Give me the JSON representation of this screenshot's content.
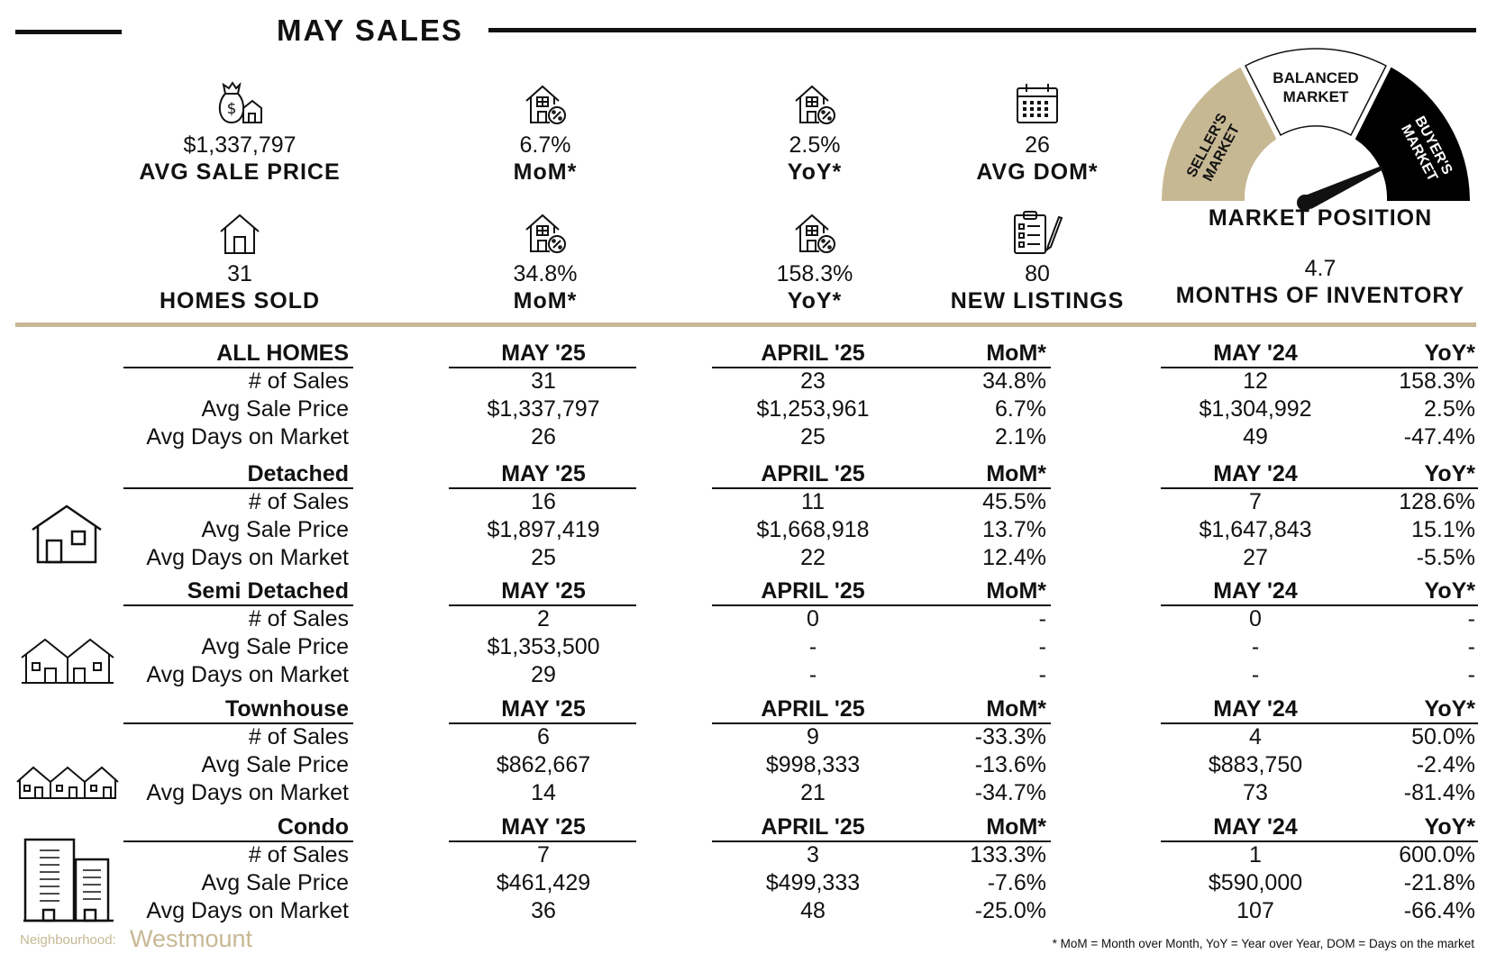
{
  "header": {
    "title": "MAY SALES"
  },
  "stats_top": [
    {
      "icon": "money-bag-house-icon",
      "value": "$1,337,797",
      "label": "AVG SALE PRICE"
    },
    {
      "icon": "house-percent-icon",
      "value": "6.7%",
      "label": "MoM*"
    },
    {
      "icon": "house-percent-icon",
      "value": "2.5%",
      "label": "YoY*"
    },
    {
      "icon": "calendar-icon",
      "value": "26",
      "label": "AVG DOM*"
    }
  ],
  "stats_bottom": [
    {
      "icon": "house-icon",
      "value": "31",
      "label": "HOMES SOLD"
    },
    {
      "icon": "house-percent-icon",
      "value": "34.8%",
      "label": "MoM*"
    },
    {
      "icon": "house-percent-icon",
      "value": "158.3%",
      "label": "YoY*"
    },
    {
      "icon": "clipboard-pencil-icon",
      "value": "80",
      "label": "NEW LISTINGS"
    }
  ],
  "gauge": {
    "seller": "SELLER'S MARKET",
    "balanced_1": "BALANCED",
    "balanced_2": "MARKET",
    "buyer": "BUYER'S MARKET",
    "title": "MARKET POSITION",
    "value": "4.7",
    "label": "MONTHS OF INVENTORY",
    "colors": {
      "seller": "#c7b894",
      "balanced": "#ffffff",
      "buyer": "#000000"
    }
  },
  "columns": {
    "current": "MAY '25",
    "previous": "APRIL '25",
    "mom": "MoM*",
    "last_year": "MAY '24",
    "yoy": "YoY*"
  },
  "sections": [
    {
      "name": "ALL HOMES",
      "rows": [
        {
          "label": "# of Sales",
          "cur": "31",
          "prev": "23",
          "mom": "34.8%",
          "ly": "12",
          "yoy": "158.3%"
        },
        {
          "label": "Avg Sale Price",
          "cur": "$1,337,797",
          "prev": "$1,253,961",
          "mom": "6.7%",
          "ly": "$1,304,992",
          "yoy": "2.5%"
        },
        {
          "label": "Avg Days on Market",
          "cur": "26",
          "prev": "25",
          "mom": "2.1%",
          "ly": "49",
          "yoy": "-47.4%"
        }
      ]
    },
    {
      "name": "Detached",
      "icon": "detached-house-icon",
      "rows": [
        {
          "label": "# of Sales",
          "cur": "16",
          "prev": "11",
          "mom": "45.5%",
          "ly": "7",
          "yoy": "128.6%"
        },
        {
          "label": "Avg Sale Price",
          "cur": "$1,897,419",
          "prev": "$1,668,918",
          "mom": "13.7%",
          "ly": "$1,647,843",
          "yoy": "15.1%"
        },
        {
          "label": "Avg Days on Market",
          "cur": "25",
          "prev": "22",
          "mom": "12.4%",
          "ly": "27",
          "yoy": "-5.5%"
        }
      ]
    },
    {
      "name": "Semi Detached",
      "icon": "semi-detached-icon",
      "rows": [
        {
          "label": "# of Sales",
          "cur": "2",
          "prev": "0",
          "mom": "-",
          "ly": "0",
          "yoy": "-"
        },
        {
          "label": "Avg Sale Price",
          "cur": "$1,353,500",
          "prev": "-",
          "mom": "-",
          "ly": "-",
          "yoy": "-"
        },
        {
          "label": "Avg Days on Market",
          "cur": "29",
          "prev": "-",
          "mom": "-",
          "ly": "-",
          "yoy": "-"
        }
      ]
    },
    {
      "name": "Townhouse",
      "icon": "townhouse-icon",
      "rows": [
        {
          "label": "# of Sales",
          "cur": "6",
          "prev": "9",
          "mom": "-33.3%",
          "ly": "4",
          "yoy": "50.0%"
        },
        {
          "label": "Avg Sale Price",
          "cur": "$862,667",
          "prev": "$998,333",
          "mom": "-13.6%",
          "ly": "$883,750",
          "yoy": "-2.4%"
        },
        {
          "label": "Avg Days on Market",
          "cur": "14",
          "prev": "21",
          "mom": "-34.7%",
          "ly": "73",
          "yoy": "-81.4%"
        }
      ]
    },
    {
      "name": "Condo",
      "icon": "condo-building-icon",
      "rows": [
        {
          "label": "# of Sales",
          "cur": "7",
          "prev": "3",
          "mom": "133.3%",
          "ly": "1",
          "yoy": "600.0%"
        },
        {
          "label": "Avg Sale Price",
          "cur": "$461,429",
          "prev": "$499,333",
          "mom": "-7.6%",
          "ly": "$590,000",
          "yoy": "-21.8%"
        },
        {
          "label": "Avg Days on Market",
          "cur": "36",
          "prev": "48",
          "mom": "-25.0%",
          "ly": "107",
          "yoy": "-66.4%"
        }
      ]
    }
  ],
  "footer": {
    "neighbourhood_label": "Neighbourhood:",
    "neighbourhood": "Westmount",
    "note": "* MoM = Month over Month, YoY = Year over Year, DOM = Days on the market"
  }
}
